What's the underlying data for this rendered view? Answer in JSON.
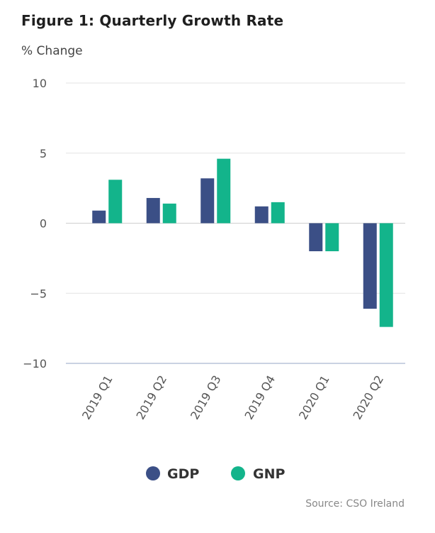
{
  "chart_data": {
    "type": "bar",
    "title": "Figure 1: Quarterly Growth Rate",
    "ylabel": "% Change",
    "xlabel": "",
    "categories": [
      "2019 Q1",
      "2019 Q2",
      "2019 Q3",
      "2019 Q4",
      "2020 Q1",
      "2020 Q2"
    ],
    "series": [
      {
        "name": "GDP",
        "color": "#3b4f86",
        "values": [
          0.9,
          1.8,
          3.2,
          1.2,
          -2.0,
          -6.1
        ]
      },
      {
        "name": "GNP",
        "color": "#13b48b",
        "values": [
          3.1,
          1.4,
          4.6,
          1.5,
          -2.0,
          -7.4
        ]
      }
    ],
    "ylim": [
      -10,
      10
    ],
    "yticks": [
      10,
      5,
      0,
      -5,
      -10
    ],
    "ytick_labels": [
      "10",
      "5",
      "0",
      "−5",
      "−10"
    ],
    "grid": true,
    "legend": "bottom-center",
    "source": "Source: CSO Ireland"
  }
}
